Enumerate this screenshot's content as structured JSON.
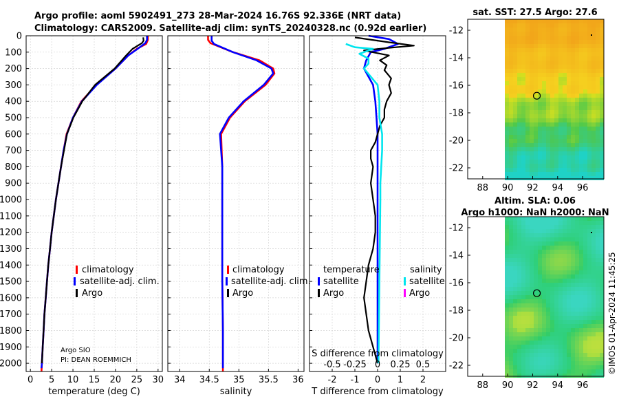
{
  "header": {
    "line1": "Argo profile: aoml 5902491_273 28-Mar-2024 16.76S 92.336E (NRT data)",
    "line2": "Climatology: CARS2009. Satellite-adj clim: synTS_20240328.nc (0.92d earlier)"
  },
  "colors": {
    "climatology": "#ff0000",
    "satellite": "#0000ff",
    "argo": "#000000",
    "sal_satellite": "#00e5ee",
    "sal_argo": "#ff00ff"
  },
  "chart_data": [
    {
      "id": "temperature",
      "type": "line",
      "xlabel": "temperature (deg C)",
      "xlim": [
        -1,
        31
      ],
      "xticks": [
        0,
        5,
        10,
        15,
        20,
        25,
        30
      ],
      "ylim": [
        0,
        2050
      ],
      "yticks": [
        0,
        100,
        200,
        300,
        400,
        500,
        600,
        700,
        800,
        900,
        1000,
        1100,
        1200,
        1300,
        1400,
        1500,
        1600,
        1700,
        1800,
        1900,
        2000
      ],
      "legend": [
        "climatology",
        "satellite-adj. clim.",
        "Argo"
      ],
      "annotation": [
        "Argo SIO",
        "PI: DEAN ROEMMICH"
      ],
      "series": [
        {
          "name": "climatology",
          "points": [
            [
              27.6,
              0
            ],
            [
              27.6,
              25
            ],
            [
              27.2,
              50
            ],
            [
              25.0,
              80
            ],
            [
              23.0,
              120
            ],
            [
              20.0,
              200
            ],
            [
              15.5,
              300
            ],
            [
              12.0,
              400
            ],
            [
              10.0,
              500
            ],
            [
              8.5,
              600
            ],
            [
              7.8,
              700
            ],
            [
              7.2,
              800
            ],
            [
              6.6,
              900
            ],
            [
              6.0,
              1000
            ],
            [
              5.5,
              1100
            ],
            [
              5.0,
              1200
            ],
            [
              4.6,
              1300
            ],
            [
              4.2,
              1400
            ],
            [
              3.9,
              1500
            ],
            [
              3.6,
              1600
            ],
            [
              3.3,
              1700
            ],
            [
              3.1,
              1800
            ],
            [
              2.9,
              1900
            ],
            [
              2.7,
              2000
            ],
            [
              2.6,
              2050
            ]
          ]
        },
        {
          "name": "satellite-adj. clim.",
          "points": [
            [
              27.4,
              0
            ],
            [
              27.4,
              25
            ],
            [
              27.0,
              45
            ],
            [
              25.2,
              80
            ],
            [
              23.0,
              120
            ],
            [
              20.0,
              200
            ],
            [
              15.6,
              300
            ],
            [
              12.1,
              400
            ],
            [
              10.0,
              500
            ],
            [
              8.6,
              600
            ],
            [
              7.8,
              700
            ],
            [
              7.2,
              800
            ],
            [
              6.6,
              900
            ],
            [
              6.0,
              1000
            ],
            [
              5.5,
              1100
            ],
            [
              5.0,
              1200
            ],
            [
              4.6,
              1300
            ],
            [
              4.2,
              1400
            ],
            [
              3.9,
              1500
            ],
            [
              3.6,
              1600
            ],
            [
              3.3,
              1700
            ],
            [
              3.1,
              1800
            ],
            [
              2.9,
              1900
            ],
            [
              2.7,
              2000
            ],
            [
              2.6,
              2030
            ]
          ]
        },
        {
          "name": "Argo",
          "points": [
            [
              26.5,
              10
            ],
            [
              26.6,
              30
            ],
            [
              26.2,
              45
            ],
            [
              24.0,
              80
            ],
            [
              22.5,
              120
            ],
            [
              19.8,
              200
            ],
            [
              15.2,
              300
            ],
            [
              12.2,
              400
            ],
            [
              10.1,
              500
            ],
            [
              8.6,
              600
            ],
            [
              7.9,
              700
            ],
            [
              7.2,
              800
            ],
            [
              6.6,
              900
            ],
            [
              6.0,
              1000
            ],
            [
              5.5,
              1100
            ],
            [
              5.0,
              1200
            ],
            [
              4.6,
              1300
            ],
            [
              4.2,
              1400
            ],
            [
              3.9,
              1500
            ],
            [
              3.6,
              1600
            ],
            [
              3.3,
              1700
            ],
            [
              3.1,
              1800
            ],
            [
              2.9,
              1900
            ],
            [
              2.7,
              2000
            ]
          ]
        }
      ]
    },
    {
      "id": "salinity",
      "type": "line",
      "xlabel": "salinity",
      "xlim": [
        33.8,
        36.1
      ],
      "xticks": [
        34,
        34.5,
        35,
        35.5,
        36
      ],
      "ylim": [
        0,
        2050
      ],
      "legend": [
        "climatology",
        "satellite-adj. clim.",
        "Argo"
      ],
      "series": [
        {
          "name": "climatology",
          "points": [
            [
              34.48,
              0
            ],
            [
              34.48,
              25
            ],
            [
              34.52,
              45
            ],
            [
              34.9,
              100
            ],
            [
              35.35,
              150
            ],
            [
              35.58,
              200
            ],
            [
              35.6,
              230
            ],
            [
              35.45,
              300
            ],
            [
              35.1,
              400
            ],
            [
              34.85,
              500
            ],
            [
              34.7,
              600
            ],
            [
              34.71,
              700
            ],
            [
              34.72,
              800
            ],
            [
              34.72,
              1000
            ],
            [
              34.72,
              1200
            ],
            [
              34.72,
              1500
            ],
            [
              34.73,
              1800
            ],
            [
              34.73,
              2000
            ],
            [
              34.73,
              2050
            ]
          ]
        },
        {
          "name": "satellite-adj. clim.",
          "points": [
            [
              34.54,
              0
            ],
            [
              34.54,
              30
            ],
            [
              34.58,
              50
            ],
            [
              34.9,
              100
            ],
            [
              35.3,
              150
            ],
            [
              35.55,
              200
            ],
            [
              35.58,
              230
            ],
            [
              35.42,
              300
            ],
            [
              35.08,
              400
            ],
            [
              34.83,
              500
            ],
            [
              34.68,
              600
            ],
            [
              34.7,
              700
            ],
            [
              34.72,
              800
            ],
            [
              34.72,
              1000
            ],
            [
              34.72,
              1200
            ],
            [
              34.72,
              1500
            ],
            [
              34.73,
              1800
            ],
            [
              34.73,
              2000
            ],
            [
              34.73,
              2030
            ]
          ]
        }
      ]
    },
    {
      "id": "difference",
      "type": "line",
      "xlabel": "T difference from climatology",
      "xlabel_top": "S difference from climatology",
      "xlim": [
        -3.0,
        3.0
      ],
      "xticks": [
        -2,
        -1,
        0,
        1,
        2
      ],
      "xticks_top": [
        -0.5,
        -0.25,
        0,
        0.25,
        0.5
      ],
      "ylim": [
        0,
        2050
      ],
      "legend": {
        "temperature_header": "temperature",
        "salinity_header": "salinity",
        "items": [
          "satellite",
          "Argo",
          "satellite",
          "Argo"
        ]
      },
      "series": [
        {
          "name": "temperature satellite",
          "points": [
            [
              -0.4,
              0
            ],
            [
              0.5,
              20
            ],
            [
              0.9,
              50
            ],
            [
              0.3,
              80
            ],
            [
              -0.3,
              100
            ],
            [
              -0.5,
              150
            ],
            [
              -0.6,
              200
            ],
            [
              -0.4,
              250
            ],
            [
              -0.2,
              300
            ],
            [
              -0.1,
              400
            ],
            [
              -0.05,
              500
            ],
            [
              0,
              600
            ],
            [
              0,
              800
            ],
            [
              0,
              1000
            ],
            [
              0,
              1500
            ],
            [
              0,
              2000
            ]
          ]
        },
        {
          "name": "temperature Argo",
          "points": [
            [
              -1.0,
              10
            ],
            [
              0.5,
              40
            ],
            [
              1.6,
              60
            ],
            [
              0.4,
              75
            ],
            [
              -0.6,
              90
            ],
            [
              0.5,
              120
            ],
            [
              0.1,
              150
            ],
            [
              0.4,
              180
            ],
            [
              0.3,
              210
            ],
            [
              0.6,
              260
            ],
            [
              0.5,
              300
            ],
            [
              0.6,
              350
            ],
            [
              0.4,
              400
            ],
            [
              0.3,
              450
            ],
            [
              0.3,
              500
            ],
            [
              0.1,
              550
            ],
            [
              0.0,
              600
            ],
            [
              -0.1,
              650
            ],
            [
              -0.3,
              700
            ],
            [
              -0.3,
              750
            ],
            [
              -0.2,
              800
            ],
            [
              -0.3,
              900
            ],
            [
              -0.2,
              1000
            ],
            [
              -0.1,
              1100
            ],
            [
              -0.1,
              1200
            ],
            [
              -0.2,
              1300
            ],
            [
              -0.4,
              1400
            ],
            [
              -0.5,
              1500
            ],
            [
              -0.6,
              1600
            ],
            [
              -0.5,
              1700
            ],
            [
              -0.4,
              1800
            ],
            [
              -0.2,
              1900
            ],
            [
              0.0,
              2000
            ]
          ]
        },
        {
          "name": "salinity satellite",
          "points": [
            [
              -0.35,
              50
            ],
            [
              -0.25,
              70
            ],
            [
              -0.05,
              80
            ],
            [
              -0.2,
              110
            ],
            [
              -0.1,
              140
            ],
            [
              -0.1,
              170
            ],
            [
              -0.15,
              200
            ],
            [
              0,
              300
            ],
            [
              0.02,
              400
            ],
            [
              0.02,
              500
            ],
            [
              0.05,
              600
            ],
            [
              0.05,
              700
            ],
            [
              0.04,
              800
            ],
            [
              0.03,
              900
            ],
            [
              0.03,
              1000
            ],
            [
              0.02,
              1500
            ],
            [
              0.01,
              2000
            ]
          ]
        }
      ]
    }
  ],
  "maps": {
    "sst": {
      "title": "sat. SST: 27.5 Argo: 27.6"
    },
    "sla": {
      "title1": "Altim. SLA: 0.06",
      "title2": "Argo h1000: NaN h2000: NaN"
    },
    "xticks": [
      "88",
      "90",
      "92",
      "94",
      "96"
    ],
    "yticks": [
      "-12",
      "-14",
      "-16",
      "-18",
      "-20",
      "-22"
    ]
  },
  "footer": "©IMOS 01-Apr-2024 11:45:25"
}
